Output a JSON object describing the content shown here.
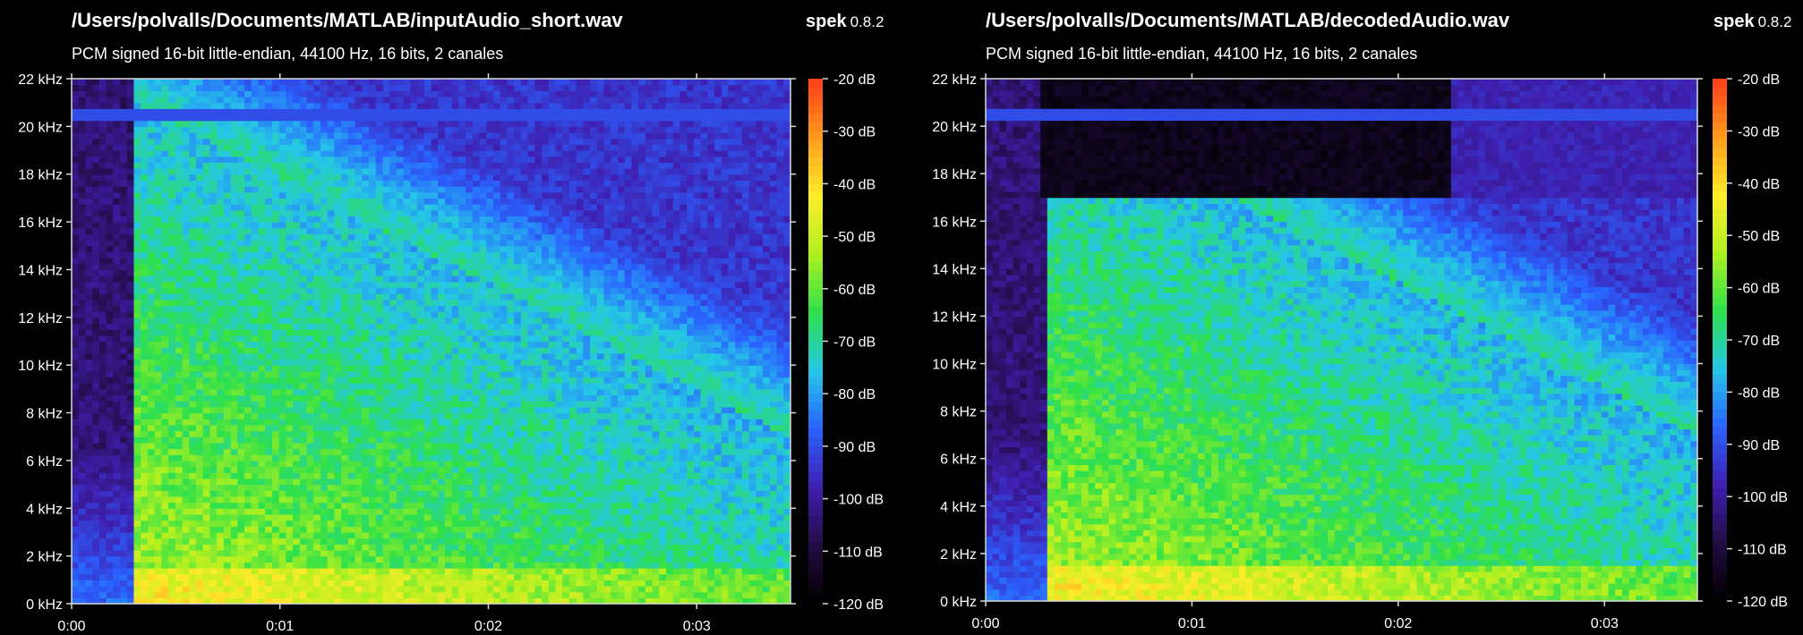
{
  "app": {
    "name": "spek",
    "version": "0.8.2"
  },
  "panels": [
    {
      "file_path": "/Users/polvalls/Documents/MATLAB/inputAudio_short.wav",
      "info": "PCM signed 16-bit little-endian, 44100 Hz, 16 bits, 2 canales"
    },
    {
      "file_path": "/Users/polvalls/Documents/MATLAB/decodedAudio.wav",
      "info": "PCM signed 16-bit little-endian, 44100 Hz, 16 bits, 2 canales"
    }
  ],
  "chart_data": [
    {
      "type": "heatmap",
      "title": "/Users/polvalls/Documents/MATLAB/inputAudio_short.wav",
      "subtitle": "PCM signed 16-bit little-endian, 44100 Hz, 16 bits, 2 canales",
      "xlim": [
        0,
        3.45
      ],
      "ylim": [
        0,
        22
      ],
      "x_unit": "s",
      "y_unit": "kHz",
      "x_ticks": [
        0,
        1,
        2,
        3
      ],
      "x_tick_labels": [
        "0:00",
        "0:01",
        "0:02",
        "0:03"
      ],
      "y_ticks": [
        0,
        2,
        4,
        6,
        8,
        10,
        12,
        14,
        16,
        18,
        20,
        22
      ],
      "y_tick_labels": [
        "0 kHz",
        "2 kHz",
        "4 kHz",
        "6 kHz",
        "8 kHz",
        "10 kHz",
        "12 kHz",
        "14 kHz",
        "16 kHz",
        "18 kHz",
        "20 kHz",
        "22 kHz"
      ],
      "colorbar": {
        "min": -120,
        "max": -20,
        "ticks": [
          -20,
          -30,
          -40,
          -50,
          -60,
          -70,
          -80,
          -90,
          -100,
          -110,
          -120
        ],
        "tick_labels": [
          "-20 dB",
          "-30 dB",
          "-40 dB",
          "-50 dB",
          "-60 dB",
          "-70 dB",
          "-80 dB",
          "-90 dB",
          "-100 dB",
          "-110 dB",
          "-120 dB"
        ]
      },
      "features": {
        "onset_s": 0.3,
        "max_freq_khz": 21.5,
        "noise_line_khz": 20.5,
        "lowpass_khz": null
      }
    },
    {
      "type": "heatmap",
      "title": "/Users/polvalls/Documents/MATLAB/decodedAudio.wav",
      "subtitle": "PCM signed 16-bit little-endian, 44100 Hz, 16 bits, 2 canales",
      "xlim": [
        0,
        3.45
      ],
      "ylim": [
        0,
        22
      ],
      "x_unit": "s",
      "y_unit": "kHz",
      "x_ticks": [
        0,
        1,
        2,
        3
      ],
      "x_tick_labels": [
        "0:00",
        "0:01",
        "0:02",
        "0:03"
      ],
      "y_ticks": [
        0,
        2,
        4,
        6,
        8,
        10,
        12,
        14,
        16,
        18,
        20,
        22
      ],
      "y_tick_labels": [
        "0 kHz",
        "2 kHz",
        "4 kHz",
        "6 kHz",
        "8 kHz",
        "10 kHz",
        "12 kHz",
        "14 kHz",
        "16 kHz",
        "18 kHz",
        "20 kHz",
        "22 kHz"
      ],
      "colorbar": {
        "min": -120,
        "max": -20,
        "ticks": [
          -20,
          -30,
          -40,
          -50,
          -60,
          -70,
          -80,
          -90,
          -100,
          -110,
          -120
        ],
        "tick_labels": [
          "-20 dB",
          "-30 dB",
          "-40 dB",
          "-50 dB",
          "-60 dB",
          "-70 dB",
          "-80 dB",
          "-90 dB",
          "-100 dB",
          "-110 dB",
          "-120 dB"
        ]
      },
      "features": {
        "onset_s": 0.3,
        "max_freq_khz": 17,
        "noise_line_khz": 20.5,
        "lowpass_khz": 17
      }
    }
  ],
  "colors": {
    "background": "#000000",
    "axis": "#d8d8d8",
    "text": "#ffffff",
    "colormap": [
      "#000000",
      "#220c44",
      "#3f1fb0",
      "#2a62ff",
      "#25c8e6",
      "#2ee04a",
      "#b0f020",
      "#ffec2a",
      "#ff9a1c",
      "#ff3c1a"
    ]
  }
}
